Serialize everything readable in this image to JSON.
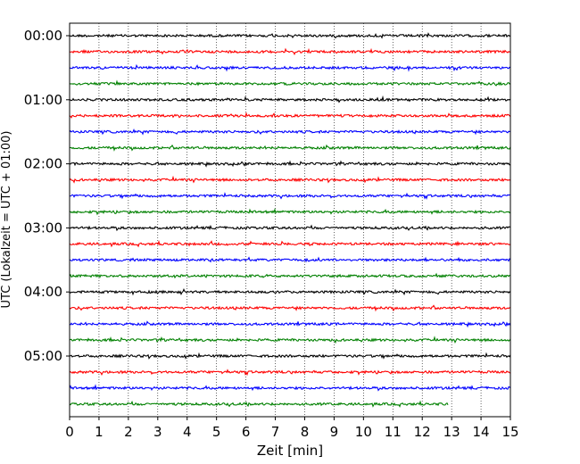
{
  "chart_data": {
    "type": "line",
    "title": "",
    "xlabel": "Zeit  [min]",
    "ylabel": "UTC (Lokalzeit = UTC + 01:00)",
    "xlim": [
      0,
      15
    ],
    "x_ticks": [
      "0",
      "1",
      "2",
      "3",
      "4",
      "5",
      "6",
      "7",
      "8",
      "9",
      "10",
      "11",
      "12",
      "13",
      "14",
      "15"
    ],
    "y_tick_labels": [
      "00:00",
      "01:00",
      "02:00",
      "03:00",
      "04:00",
      "05:00"
    ],
    "trace_interval_min": 15,
    "trace_count": 24,
    "last_trace_end_min": 12.9,
    "grid": "vertical dotted",
    "series": [
      {
        "start_utc": "00:00",
        "color": "#000000",
        "end_min": 15
      },
      {
        "start_utc": "00:15",
        "color": "#ff0000",
        "end_min": 15
      },
      {
        "start_utc": "00:30",
        "color": "#0000ff",
        "end_min": 15
      },
      {
        "start_utc": "00:45",
        "color": "#008000",
        "end_min": 15
      },
      {
        "start_utc": "01:00",
        "color": "#000000",
        "end_min": 15
      },
      {
        "start_utc": "01:15",
        "color": "#ff0000",
        "end_min": 15
      },
      {
        "start_utc": "01:30",
        "color": "#0000ff",
        "end_min": 15
      },
      {
        "start_utc": "01:45",
        "color": "#008000",
        "end_min": 15
      },
      {
        "start_utc": "02:00",
        "color": "#000000",
        "end_min": 15
      },
      {
        "start_utc": "02:15",
        "color": "#ff0000",
        "end_min": 15
      },
      {
        "start_utc": "02:30",
        "color": "#0000ff",
        "end_min": 15
      },
      {
        "start_utc": "02:45",
        "color": "#008000",
        "end_min": 15
      },
      {
        "start_utc": "03:00",
        "color": "#000000",
        "end_min": 15
      },
      {
        "start_utc": "03:15",
        "color": "#ff0000",
        "end_min": 15
      },
      {
        "start_utc": "03:30",
        "color": "#0000ff",
        "end_min": 15
      },
      {
        "start_utc": "03:45",
        "color": "#008000",
        "end_min": 15
      },
      {
        "start_utc": "04:00",
        "color": "#000000",
        "end_min": 15
      },
      {
        "start_utc": "04:15",
        "color": "#ff0000",
        "end_min": 15
      },
      {
        "start_utc": "04:30",
        "color": "#0000ff",
        "end_min": 15
      },
      {
        "start_utc": "04:45",
        "color": "#008000",
        "end_min": 15
      },
      {
        "start_utc": "05:00",
        "color": "#000000",
        "end_min": 15
      },
      {
        "start_utc": "05:15",
        "color": "#ff0000",
        "end_min": 15
      },
      {
        "start_utc": "05:30",
        "color": "#0000ff",
        "end_min": 15
      },
      {
        "start_utc": "05:45",
        "color": "#008000",
        "end_min": 12.9
      }
    ]
  }
}
